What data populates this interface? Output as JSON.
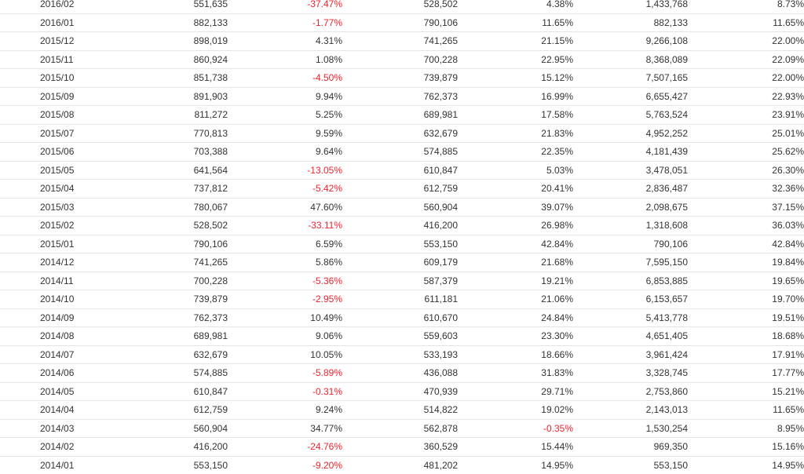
{
  "table": {
    "rows": [
      {
        "month": "2016/02",
        "v1": "551,635",
        "p1": "-37.47%",
        "v2": "528,502",
        "p2": "4.38%",
        "v3": "1,433,768",
        "p3": "8.73%"
      },
      {
        "month": "2016/01",
        "v1": "882,133",
        "p1": "-1.77%",
        "v2": "790,106",
        "p2": "11.65%",
        "v3": "882,133",
        "p3": "11.65%"
      },
      {
        "month": "2015/12",
        "v1": "898,019",
        "p1": "4.31%",
        "v2": "741,265",
        "p2": "21.15%",
        "v3": "9,266,108",
        "p3": "22.00%"
      },
      {
        "month": "2015/11",
        "v1": "860,924",
        "p1": "1.08%",
        "v2": "700,228",
        "p2": "22.95%",
        "v3": "8,368,089",
        "p3": "22.09%"
      },
      {
        "month": "2015/10",
        "v1": "851,738",
        "p1": "-4.50%",
        "v2": "739,879",
        "p2": "15.12%",
        "v3": "7,507,165",
        "p3": "22.00%"
      },
      {
        "month": "2015/09",
        "v1": "891,903",
        "p1": "9.94%",
        "v2": "762,373",
        "p2": "16.99%",
        "v3": "6,655,427",
        "p3": "22.93%"
      },
      {
        "month": "2015/08",
        "v1": "811,272",
        "p1": "5.25%",
        "v2": "689,981",
        "p2": "17.58%",
        "v3": "5,763,524",
        "p3": "23.91%"
      },
      {
        "month": "2015/07",
        "v1": "770,813",
        "p1": "9.59%",
        "v2": "632,679",
        "p2": "21.83%",
        "v3": "4,952,252",
        "p3": "25.01%"
      },
      {
        "month": "2015/06",
        "v1": "703,388",
        "p1": "9.64%",
        "v2": "574,885",
        "p2": "22.35%",
        "v3": "4,181,439",
        "p3": "25.62%"
      },
      {
        "month": "2015/05",
        "v1": "641,564",
        "p1": "-13.05%",
        "v2": "610,847",
        "p2": "5.03%",
        "v3": "3,478,051",
        "p3": "26.30%"
      },
      {
        "month": "2015/04",
        "v1": "737,812",
        "p1": "-5.42%",
        "v2": "612,759",
        "p2": "20.41%",
        "v3": "2,836,487",
        "p3": "32.36%"
      },
      {
        "month": "2015/03",
        "v1": "780,067",
        "p1": "47.60%",
        "v2": "560,904",
        "p2": "39.07%",
        "v3": "2,098,675",
        "p3": "37.15%"
      },
      {
        "month": "2015/02",
        "v1": "528,502",
        "p1": "-33.11%",
        "v2": "416,200",
        "p2": "26.98%",
        "v3": "1,318,608",
        "p3": "36.03%"
      },
      {
        "month": "2015/01",
        "v1": "790,106",
        "p1": "6.59%",
        "v2": "553,150",
        "p2": "42.84%",
        "v3": "790,106",
        "p3": "42.84%"
      },
      {
        "month": "2014/12",
        "v1": "741,265",
        "p1": "5.86%",
        "v2": "609,179",
        "p2": "21.68%",
        "v3": "7,595,150",
        "p3": "19.84%"
      },
      {
        "month": "2014/11",
        "v1": "700,228",
        "p1": "-5.36%",
        "v2": "587,379",
        "p2": "19.21%",
        "v3": "6,853,885",
        "p3": "19.65%"
      },
      {
        "month": "2014/10",
        "v1": "739,879",
        "p1": "-2.95%",
        "v2": "611,181",
        "p2": "21.06%",
        "v3": "6,153,657",
        "p3": "19.70%"
      },
      {
        "month": "2014/09",
        "v1": "762,373",
        "p1": "10.49%",
        "v2": "610,670",
        "p2": "24.84%",
        "v3": "5,413,778",
        "p3": "19.51%"
      },
      {
        "month": "2014/08",
        "v1": "689,981",
        "p1": "9.06%",
        "v2": "559,603",
        "p2": "23.30%",
        "v3": "4,651,405",
        "p3": "18.68%"
      },
      {
        "month": "2014/07",
        "v1": "632,679",
        "p1": "10.05%",
        "v2": "533,193",
        "p2": "18.66%",
        "v3": "3,961,424",
        "p3": "17.91%"
      },
      {
        "month": "2014/06",
        "v1": "574,885",
        "p1": "-5.89%",
        "v2": "436,088",
        "p2": "31.83%",
        "v3": "3,328,745",
        "p3": "17.77%"
      },
      {
        "month": "2014/05",
        "v1": "610,847",
        "p1": "-0.31%",
        "v2": "470,939",
        "p2": "29.71%",
        "v3": "2,753,860",
        "p3": "15.21%"
      },
      {
        "month": "2014/04",
        "v1": "612,759",
        "p1": "9.24%",
        "v2": "514,822",
        "p2": "19.02%",
        "v3": "2,143,013",
        "p3": "11.65%"
      },
      {
        "month": "2014/03",
        "v1": "560,904",
        "p1": "34.77%",
        "v2": "562,878",
        "p2": "-0.35%",
        "v3": "1,530,254",
        "p3": "8.95%"
      },
      {
        "month": "2014/02",
        "v1": "416,200",
        "p1": "-24.76%",
        "v2": "360,529",
        "p2": "15.44%",
        "v3": "969,350",
        "p3": "15.16%"
      },
      {
        "month": "2014/01",
        "v1": "553,150",
        "p1": "-9.20%",
        "v2": "481,202",
        "p2": "14.95%",
        "v3": "553,150",
        "p3": "14.95%"
      }
    ]
  },
  "colors": {
    "text": "#333333",
    "negative": "#f0232d",
    "row_border": "#e5e5e5",
    "background": "#ffffff"
  }
}
